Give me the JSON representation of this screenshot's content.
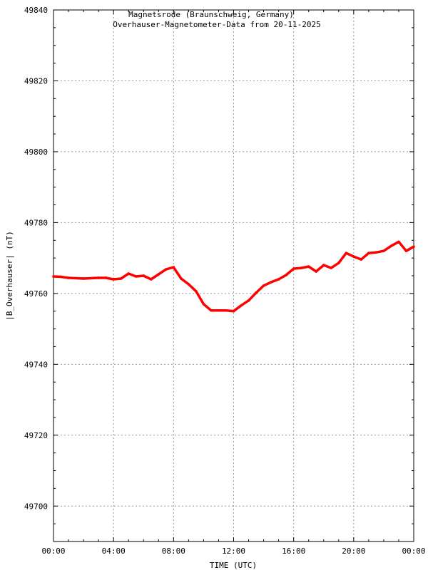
{
  "chart_data": {
    "type": "line",
    "title": "Magnetsrode (Braunschweig, Germany)",
    "subtitle": "Overhauser-Magnetometer-Data from 20-11-2025",
    "xlabel": "TIME (UTC)",
    "ylabel": "|B_Overhauser| (nT)",
    "xlim": [
      0,
      24
    ],
    "ylim": [
      49690,
      49840
    ],
    "grid": true,
    "x_ticks": [
      0,
      4,
      8,
      12,
      16,
      20,
      24
    ],
    "x_tick_labels": [
      "00:00",
      "04:00",
      "08:00",
      "12:00",
      "16:00",
      "20:00",
      "00:00"
    ],
    "y_ticks": [
      49700,
      49720,
      49740,
      49760,
      49780,
      49800,
      49820,
      49840
    ],
    "y_tick_labels": [
      "49700",
      "49720",
      "49740",
      "49760",
      "49780",
      "49800",
      "49820",
      "49840"
    ],
    "series_color": "#ff0000",
    "x": [
      0,
      0.5,
      1,
      2,
      3,
      3.5,
      4,
      4.5,
      5,
      5.5,
      6,
      6.5,
      7,
      7.5,
      8,
      8.5,
      9,
      9.5,
      10,
      10.5,
      11,
      11.5,
      12,
      12.5,
      13,
      13.5,
      14,
      14.5,
      15,
      15.5,
      16,
      16.5,
      17,
      17.5,
      18,
      18.5,
      19,
      19.5,
      20,
      20.5,
      21,
      21.5,
      22,
      22.5,
      23,
      23.5,
      24
    ],
    "values": [
      49764.8,
      49764.7,
      49764.4,
      49764.2,
      49764.4,
      49764.4,
      49764.0,
      49764.2,
      49765.6,
      49764.8,
      49765.0,
      49764.0,
      49765.4,
      49766.8,
      49767.4,
      49764.2,
      49762.6,
      49760.6,
      49757.0,
      49755.2,
      49755.2,
      49755.2,
      49755.0,
      49756.6,
      49758.0,
      49760.2,
      49762.2,
      49763.2,
      49764.0,
      49765.2,
      49767.0,
      49767.2,
      49767.6,
      49766.2,
      49768.0,
      49767.2,
      49768.6,
      49771.4,
      49770.4,
      49769.6,
      49771.4,
      49771.6,
      49772.0,
      49773.4,
      49774.6,
      49772.0,
      49773.2
    ]
  }
}
